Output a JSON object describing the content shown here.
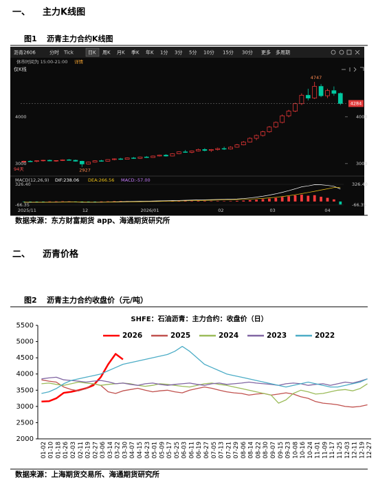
{
  "section1": {
    "number": "一、",
    "title": "主力K线图"
  },
  "figure1": {
    "number": "图1",
    "caption": "沥青主力合约K线图",
    "source": "数据来源：东方财富期货 app、海通期货研究所",
    "screenshot": {
      "toolbar": [
        "沥青2606",
        "分时",
        "Tick",
        "日K",
        "周K",
        "月K",
        "季K",
        "年K",
        "1分",
        "3分",
        "5分",
        "10分",
        "15分",
        "30分",
        "更多",
        "多周期"
      ],
      "notice": "休市时间为 15:00-21:00",
      "notice_link": "详情",
      "indicator": "仅K线",
      "corner_note": "94天",
      "kline": {
        "up_color": "#ff3b3b",
        "down_color": "#00c8a0",
        "ylim": [
          2820,
          5100
        ],
        "yticks": [
          3000,
          4000
        ],
        "candles": [
          [
            3040,
            3060,
            3020,
            3050
          ],
          [
            3050,
            3070,
            3030,
            3045
          ],
          [
            3045,
            3065,
            3030,
            3060
          ],
          [
            3060,
            3080,
            3045,
            3070
          ],
          [
            3070,
            3085,
            3050,
            3055
          ],
          [
            3055,
            3070,
            3040,
            3065
          ],
          [
            3065,
            3090,
            3055,
            3080
          ],
          [
            3080,
            3095,
            3060,
            3070
          ],
          [
            3070,
            3085,
            3040,
            3050
          ],
          [
            3050,
            3060,
            2927,
            2990
          ],
          [
            2990,
            3040,
            2980,
            3030
          ],
          [
            3030,
            3070,
            3020,
            3060
          ],
          [
            3060,
            3080,
            3040,
            3050
          ],
          [
            3050,
            3090,
            3045,
            3085
          ],
          [
            3085,
            3110,
            3070,
            3100
          ],
          [
            3100,
            3120,
            3080,
            3090
          ],
          [
            3090,
            3130,
            3085,
            3120
          ],
          [
            3120,
            3140,
            3100,
            3110
          ],
          [
            3110,
            3150,
            3100,
            3140
          ],
          [
            3140,
            3160,
            3120,
            3130
          ],
          [
            3130,
            3170,
            3125,
            3160
          ],
          [
            3160,
            3190,
            3150,
            3180
          ],
          [
            3180,
            3200,
            3150,
            3160
          ],
          [
            3160,
            3220,
            3155,
            3210
          ],
          [
            3210,
            3260,
            3200,
            3250
          ],
          [
            3250,
            3290,
            3230,
            3240
          ],
          [
            3240,
            3280,
            3220,
            3270
          ],
          [
            3270,
            3320,
            3260,
            3300
          ],
          [
            3300,
            3330,
            3260,
            3280
          ],
          [
            3280,
            3310,
            3250,
            3300
          ],
          [
            3300,
            3340,
            3280,
            3320
          ],
          [
            3320,
            3360,
            3290,
            3310
          ],
          [
            3310,
            3370,
            3300,
            3350
          ],
          [
            3350,
            3420,
            3340,
            3400
          ],
          [
            3400,
            3480,
            3390,
            3460
          ],
          [
            3460,
            3560,
            3450,
            3540
          ],
          [
            3540,
            3620,
            3500,
            3600
          ],
          [
            3600,
            3700,
            3580,
            3680
          ],
          [
            3680,
            3800,
            3660,
            3780
          ],
          [
            3780,
            3900,
            3760,
            3880
          ],
          [
            3880,
            4050,
            3860,
            4020
          ],
          [
            4020,
            4150,
            3990,
            4120
          ],
          [
            4120,
            4300,
            4100,
            4280
          ],
          [
            4280,
            4500,
            4250,
            4460
          ],
          [
            4460,
            4600,
            4350,
            4400
          ],
          [
            4400,
            4747,
            4380,
            4650
          ],
          [
            4650,
            4700,
            4420,
            4450
          ],
          [
            4450,
            4600,
            4400,
            4560
          ],
          [
            4560,
            4650,
            4450,
            4500
          ],
          [
            4500,
            4520,
            4250,
            4284
          ]
        ]
      },
      "macd": {
        "title": "MACD(12,26,9)",
        "legend": [
          "DIF:238.06",
          "DEA:266.56",
          "MACD:-57.00"
        ],
        "colors": [
          "#ffffff",
          "#f0c419",
          "#c77dff"
        ],
        "ylim": [
          -66.35,
          326.4
        ],
        "yticks": [
          {
            "value": -66.35,
            "label": "-66.35"
          },
          {
            "value": 326.4,
            "label": "326.40"
          }
        ],
        "hist": [
          -5,
          -4,
          -3,
          -2,
          2,
          3,
          4,
          2,
          -3,
          -8,
          -6,
          -2,
          1,
          3,
          5,
          6,
          6,
          5,
          6,
          5,
          6,
          8,
          6,
          7,
          10,
          9,
          8,
          10,
          9,
          7,
          8,
          7,
          8,
          12,
          18,
          26,
          34,
          44,
          56,
          70,
          86,
          100,
          118,
          130,
          110,
          120,
          90,
          70,
          40,
          -57
        ],
        "dif": [
          -15,
          -16,
          -16,
          -15,
          -13,
          -12,
          -10,
          -9,
          -10,
          -14,
          -15,
          -14,
          -12,
          -10,
          -7,
          -4,
          -1,
          1,
          4,
          6,
          9,
          12,
          14,
          17,
          21,
          24,
          27,
          31,
          34,
          36,
          39,
          41,
          44,
          49,
          57,
          69,
          83,
          101,
          122,
          146,
          174,
          206,
          241,
          279,
          296,
          320,
          318,
          306,
          290,
          238.06
        ],
        "dea": [
          -12,
          -13,
          -14,
          -14,
          -14,
          -13,
          -12,
          -11,
          -11,
          -11,
          -12,
          -13,
          -13,
          -12,
          -11,
          -10,
          -8,
          -6,
          -4,
          -2,
          0,
          2,
          5,
          7,
          10,
          13,
          16,
          19,
          22,
          25,
          28,
          31,
          34,
          37,
          41,
          46,
          52,
          60,
          69,
          80,
          94,
          110,
          129,
          150,
          172,
          194,
          218,
          241,
          266,
          266.56
        ]
      },
      "dates": [
        "2025/11",
        "12",
        "2026/01",
        "02",
        "03",
        "04"
      ]
    }
  },
  "section2": {
    "number": "二、",
    "title": "沥青价格"
  },
  "figure2": {
    "number": "图2",
    "caption": "沥青主力合约收盘价（元/吨）",
    "source": "数据来源：上海期货交易所、海通期货研究所",
    "chart": {
      "type": "line",
      "title": "SHFE：石油沥青：主力合约：收盘价（日）",
      "categories": [
        "01-02",
        "01-10",
        "01-18",
        "01-26",
        "02-03",
        "02-11",
        "02-19",
        "02-27",
        "03-06",
        "03-14",
        "03-22",
        "03-30",
        "04-07",
        "04-15",
        "04-23",
        "05-01",
        "05-09",
        "05-17",
        "05-25",
        "06-03",
        "06-11",
        "06-19",
        "06-27",
        "07-05",
        "07-13",
        "07-21",
        "07-29",
        "08-06",
        "08-14",
        "08-22",
        "08-30",
        "09-07",
        "09-15",
        "09-23",
        "10-08",
        "10-16",
        "10-24",
        "11-01",
        "11-09",
        "11-17",
        "11-25",
        "12-03",
        "12-11",
        "12-19",
        "12-27"
      ],
      "ylim": [
        2000,
        5500
      ],
      "yticks": [
        2000,
        2500,
        3000,
        3500,
        4000,
        4500,
        5000,
        5500
      ],
      "series": [
        {
          "name": "2026",
          "color": "#ff0000",
          "width": 2.5,
          "values": [
            3150,
            3160,
            3250,
            3420,
            3450,
            3500,
            3560,
            3650,
            3900,
            4300,
            4620,
            4450,
            null,
            null,
            null,
            null,
            null,
            null,
            null,
            null,
            null,
            null,
            null,
            null,
            null,
            null,
            null,
            null,
            null,
            null,
            null,
            null,
            null,
            null,
            null,
            null,
            null,
            null,
            null,
            null,
            null,
            null,
            null,
            null,
            null
          ]
        },
        {
          "name": "2025",
          "color": "#c0504d",
          "width": 1.3,
          "values": [
            3820,
            3780,
            3750,
            3600,
            3520,
            3480,
            3550,
            3700,
            3650,
            3450,
            3400,
            3480,
            3520,
            3560,
            3500,
            3450,
            3480,
            3500,
            3450,
            3420,
            3500,
            3550,
            3600,
            3560,
            3500,
            3450,
            3420,
            3400,
            3350,
            3380,
            3400,
            3350,
            3380,
            3420,
            3380,
            3300,
            3250,
            3150,
            3100,
            3080,
            3050,
            3000,
            2980,
            3000,
            3050
          ]
        },
        {
          "name": "2024",
          "color": "#9bbb59",
          "width": 1.3,
          "values": [
            3700,
            3720,
            3680,
            3650,
            3700,
            3750,
            3720,
            3700,
            3650,
            3680,
            3700,
            3720,
            3700,
            3650,
            3620,
            3650,
            3700,
            3680,
            3650,
            3620,
            3600,
            3650,
            3700,
            3720,
            3680,
            3650,
            3600,
            3550,
            3500,
            3450,
            3400,
            3350,
            3100,
            3200,
            3400,
            3500,
            3450,
            3380,
            3400,
            3450,
            3500,
            3520,
            3480,
            3550,
            3700
          ]
        },
        {
          "name": "2023",
          "color": "#8064a2",
          "width": 1.3,
          "values": [
            3850,
            3880,
            3900,
            3820,
            3800,
            3780,
            3750,
            3780,
            3800,
            3760,
            3700,
            3720,
            3680,
            3650,
            3700,
            3720,
            3680,
            3650,
            3680,
            3700,
            3720,
            3680,
            3650,
            3700,
            3720,
            3680,
            3700,
            3720,
            3750,
            3720,
            3700,
            3680,
            3650,
            3700,
            3720,
            3700,
            3650,
            3680,
            3700,
            3650,
            3700,
            3750,
            3720,
            3780,
            3850
          ]
        },
        {
          "name": "2022",
          "color": "#4bacc6",
          "width": 1.3,
          "values": [
            3400,
            3450,
            3550,
            3700,
            3800,
            3850,
            3900,
            3950,
            4000,
            4100,
            4200,
            4300,
            4350,
            4400,
            4450,
            4500,
            4550,
            4600,
            4700,
            4850,
            4700,
            4500,
            4300,
            4200,
            4100,
            4000,
            3950,
            3900,
            3850,
            3800,
            3750,
            3700,
            3650,
            3600,
            3650,
            3700,
            3750,
            3700,
            3650,
            3600,
            3600,
            3650,
            3700,
            3750,
            3850
          ]
        }
      ]
    }
  }
}
